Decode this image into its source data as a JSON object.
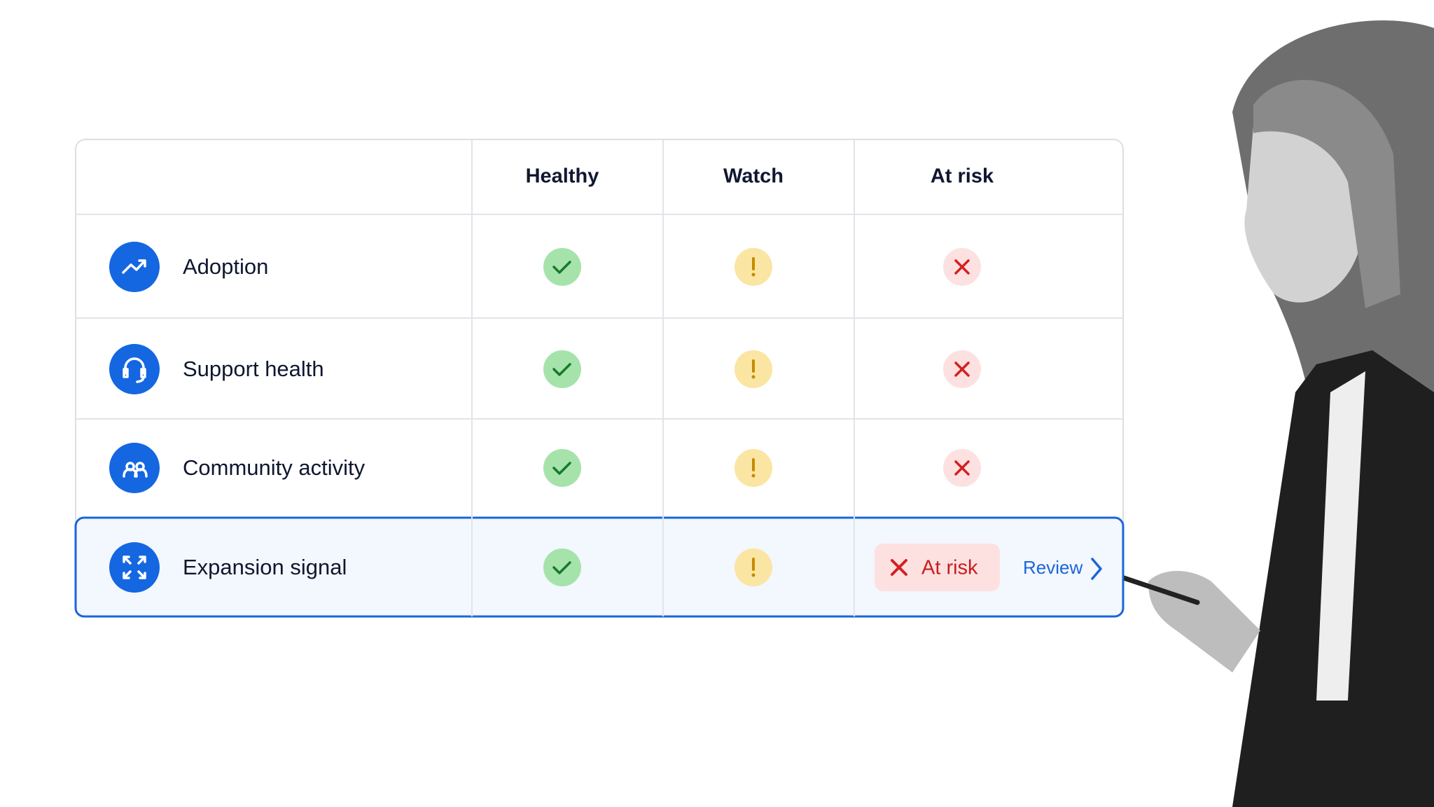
{
  "table": {
    "columns": [
      "Healthy",
      "Watch",
      "At risk"
    ],
    "rows": [
      {
        "label": "Adoption"
      },
      {
        "label": "Support health"
      },
      {
        "label": "Community activity"
      },
      {
        "label": "Expansion signal",
        "badge": "At risk",
        "action": "Review"
      }
    ]
  }
}
